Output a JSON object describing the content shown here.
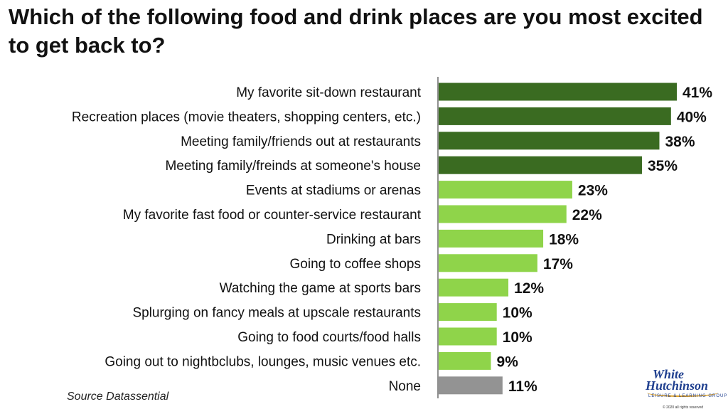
{
  "title": "Which of the following food and drink places are you most excited to get back to?",
  "source": "Source Datassential",
  "logo": {
    "line1": "White",
    "line2": "Hutchinson",
    "tagline": "LEISURE & LEARNING GROUP",
    "copyright": "© 2020 all rights reserved"
  },
  "chart_data": {
    "type": "bar",
    "orientation": "horizontal",
    "categories": [
      "My favorite sit-down restaurant",
      "Recreation places (movie theaters, shopping centers, etc.)",
      "Meeting family/friends out at restaurants",
      "Meeting family/freinds at someone's house",
      "Events at stadiums or arenas",
      "My favorite fast food or counter-service restaurant",
      "Drinking at bars",
      "Going to coffee shops",
      "Watching the game at sports bars",
      "Splurging on fancy meals at upscale restaurants",
      "Going to food courts/food halls",
      "Going out to nightbclubs, lounges, music venues etc.",
      "None"
    ],
    "values": [
      41,
      40,
      38,
      35,
      23,
      22,
      18,
      17,
      12,
      10,
      10,
      9,
      11
    ],
    "value_labels": [
      "41%",
      "40%",
      "38%",
      "35%",
      "23%",
      "22%",
      "18%",
      "17%",
      "12%",
      "10%",
      "10%",
      "9%",
      "11%"
    ],
    "colors": [
      "#3a6b21",
      "#3a6b21",
      "#3a6b21",
      "#3a6b21",
      "#8fd44a",
      "#8fd44a",
      "#8fd44a",
      "#8fd44a",
      "#8fd44a",
      "#8fd44a",
      "#8fd44a",
      "#8fd44a",
      "#939393"
    ],
    "grid": false,
    "legend": "none"
  }
}
